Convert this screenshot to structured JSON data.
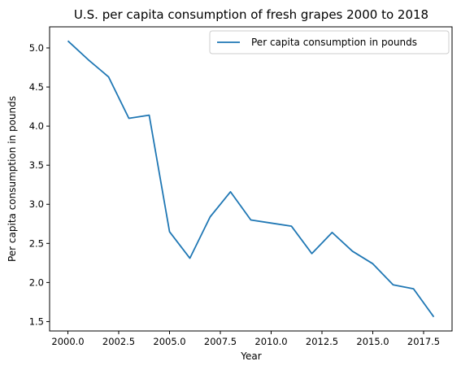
{
  "chart_data": {
    "type": "line",
    "title": "U.S. per capita consumption of fresh grapes 2000 to 2018",
    "xlabel": "Year",
    "ylabel": "Per capita consumption in pounds",
    "xlim": [
      1999.1,
      2018.9
    ],
    "ylim": [
      1.38,
      5.27
    ],
    "xticks": [
      2000.0,
      2002.5,
      2005.0,
      2007.5,
      2010.0,
      2012.5,
      2015.0,
      2017.5
    ],
    "xtick_labels": [
      "2000.0",
      "2002.5",
      "2005.0",
      "2007.5",
      "2010.0",
      "2012.5",
      "2015.0",
      "2017.5"
    ],
    "yticks": [
      1.5,
      2.0,
      2.5,
      3.0,
      3.5,
      4.0,
      4.5,
      5.0
    ],
    "ytick_labels": [
      "1.5",
      "2.0",
      "2.5",
      "3.0",
      "3.5",
      "4.0",
      "4.5",
      "5.0"
    ],
    "grid": false,
    "legend_position": "top-right",
    "series": [
      {
        "name": "Per capita consumption in pounds",
        "color": "#1f77b4",
        "x": [
          2000,
          2001,
          2002,
          2003,
          2004,
          2005,
          2006,
          2007,
          2008,
          2009,
          2010,
          2011,
          2012,
          2013,
          2014,
          2015,
          2016,
          2017,
          2018
        ],
        "y": [
          5.09,
          4.85,
          4.63,
          4.1,
          4.14,
          2.65,
          2.31,
          2.84,
          3.16,
          2.8,
          2.76,
          2.72,
          2.37,
          2.64,
          2.4,
          2.24,
          1.97,
          1.92,
          1.56
        ]
      }
    ]
  }
}
